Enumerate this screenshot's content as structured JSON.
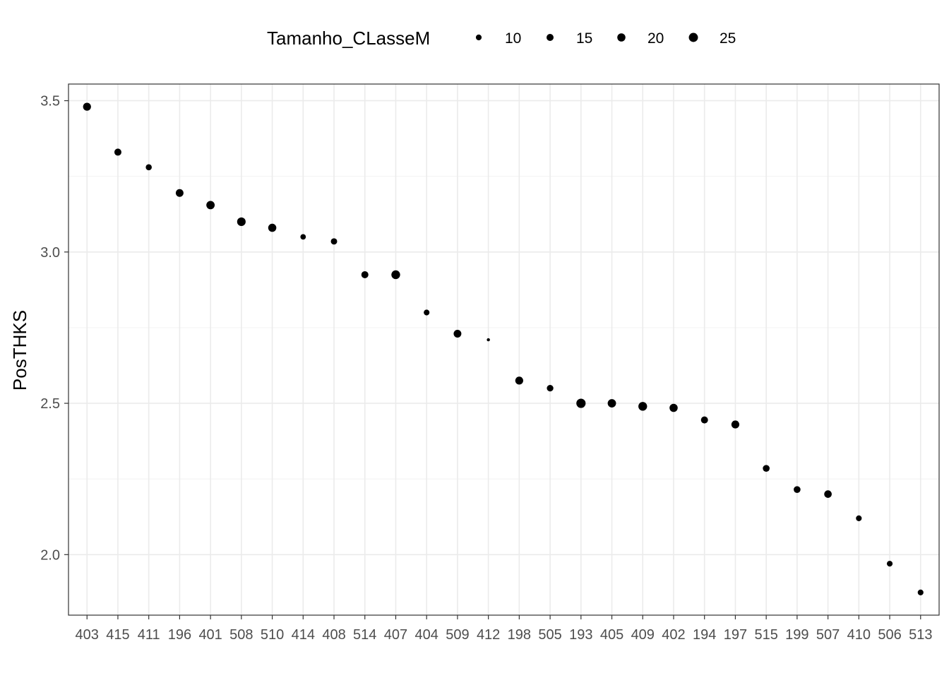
{
  "chart_data": {
    "type": "scatter",
    "title": "",
    "xlabel": "",
    "ylabel": "PosTHKS",
    "ylim": [
      1.8,
      3.555
    ],
    "y_ticks": [
      2.0,
      2.5,
      3.0,
      3.5
    ],
    "y_tick_labels": [
      "2.0",
      "2.5",
      "3.0",
      "3.5"
    ],
    "grid": true,
    "categories": [
      "403",
      "415",
      "411",
      "196",
      "401",
      "508",
      "510",
      "414",
      "408",
      "514",
      "407",
      "404",
      "509",
      "412",
      "198",
      "505",
      "193",
      "405",
      "409",
      "402",
      "194",
      "197",
      "515",
      "199",
      "507",
      "410",
      "506",
      "513"
    ],
    "values": [
      3.48,
      3.33,
      3.28,
      3.195,
      3.155,
      3.1,
      3.08,
      3.05,
      3.035,
      2.925,
      2.925,
      2.8,
      2.73,
      2.71,
      2.575,
      2.55,
      2.5,
      2.5,
      2.49,
      2.485,
      2.445,
      2.43,
      2.285,
      2.215,
      2.2,
      2.12,
      1.97,
      1.875
    ],
    "sizes": [
      19,
      15,
      11,
      18,
      21,
      22,
      20,
      9,
      12,
      15,
      23,
      10,
      18,
      3,
      19,
      13,
      26,
      21,
      23,
      20,
      15,
      19,
      14,
      14,
      17,
      10,
      10,
      10
    ],
    "size_legend": {
      "title": "Tamanho_CLasseM",
      "placement": "top",
      "breaks": [
        10,
        15,
        20,
        25
      ],
      "labels": [
        "10",
        "15",
        "20",
        "25"
      ]
    },
    "colors": {
      "point": "#000000",
      "grid_major": "#ebebeb",
      "grid_minor": "#f4f4f4",
      "panel_border": "#333333",
      "tick_text": "#4d4d4d"
    }
  }
}
